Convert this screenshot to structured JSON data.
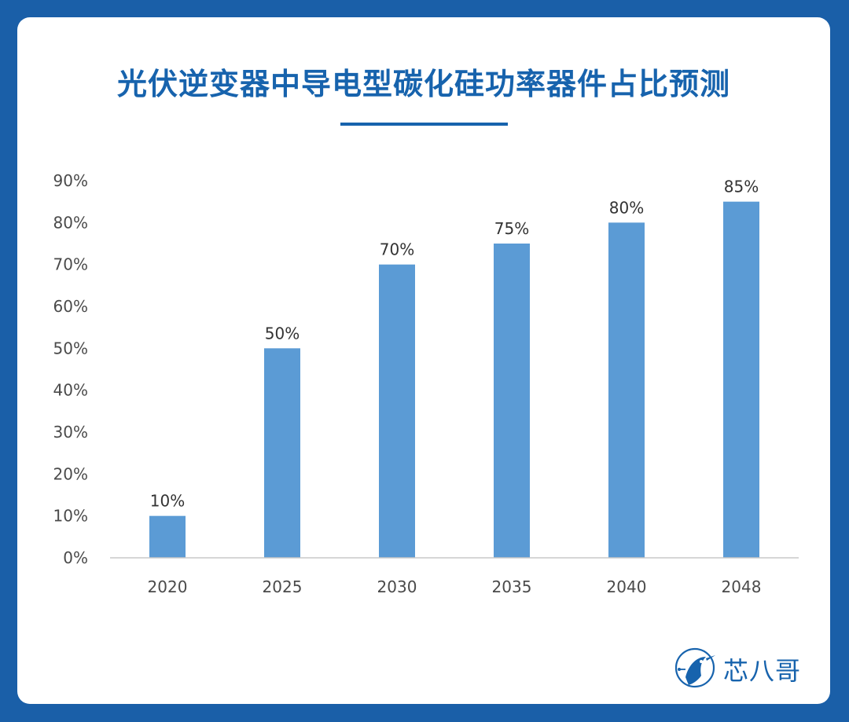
{
  "chart_data": {
    "type": "bar",
    "title": "光伏逆变器中导电型碳化硅功率器件占比预测",
    "categories": [
      "2020",
      "2025",
      "2030",
      "2035",
      "2040",
      "2048"
    ],
    "values": [
      10,
      50,
      70,
      75,
      80,
      85
    ],
    "data_labels": [
      "10%",
      "50%",
      "70%",
      "75%",
      "80%",
      "85%"
    ],
    "y_ticks": [
      "0%",
      "10%",
      "20%",
      "30%",
      "40%",
      "50%",
      "60%",
      "70%",
      "80%",
      "90%"
    ],
    "ylim": [
      0,
      90
    ],
    "xlabel": "",
    "ylabel": "",
    "grid": false,
    "bar_color": "#5b9bd5"
  },
  "brand": {
    "logo_text": "芯八哥",
    "logo_icon": "kingfisher-bird-icon",
    "accent_color": "#1763ad"
  }
}
